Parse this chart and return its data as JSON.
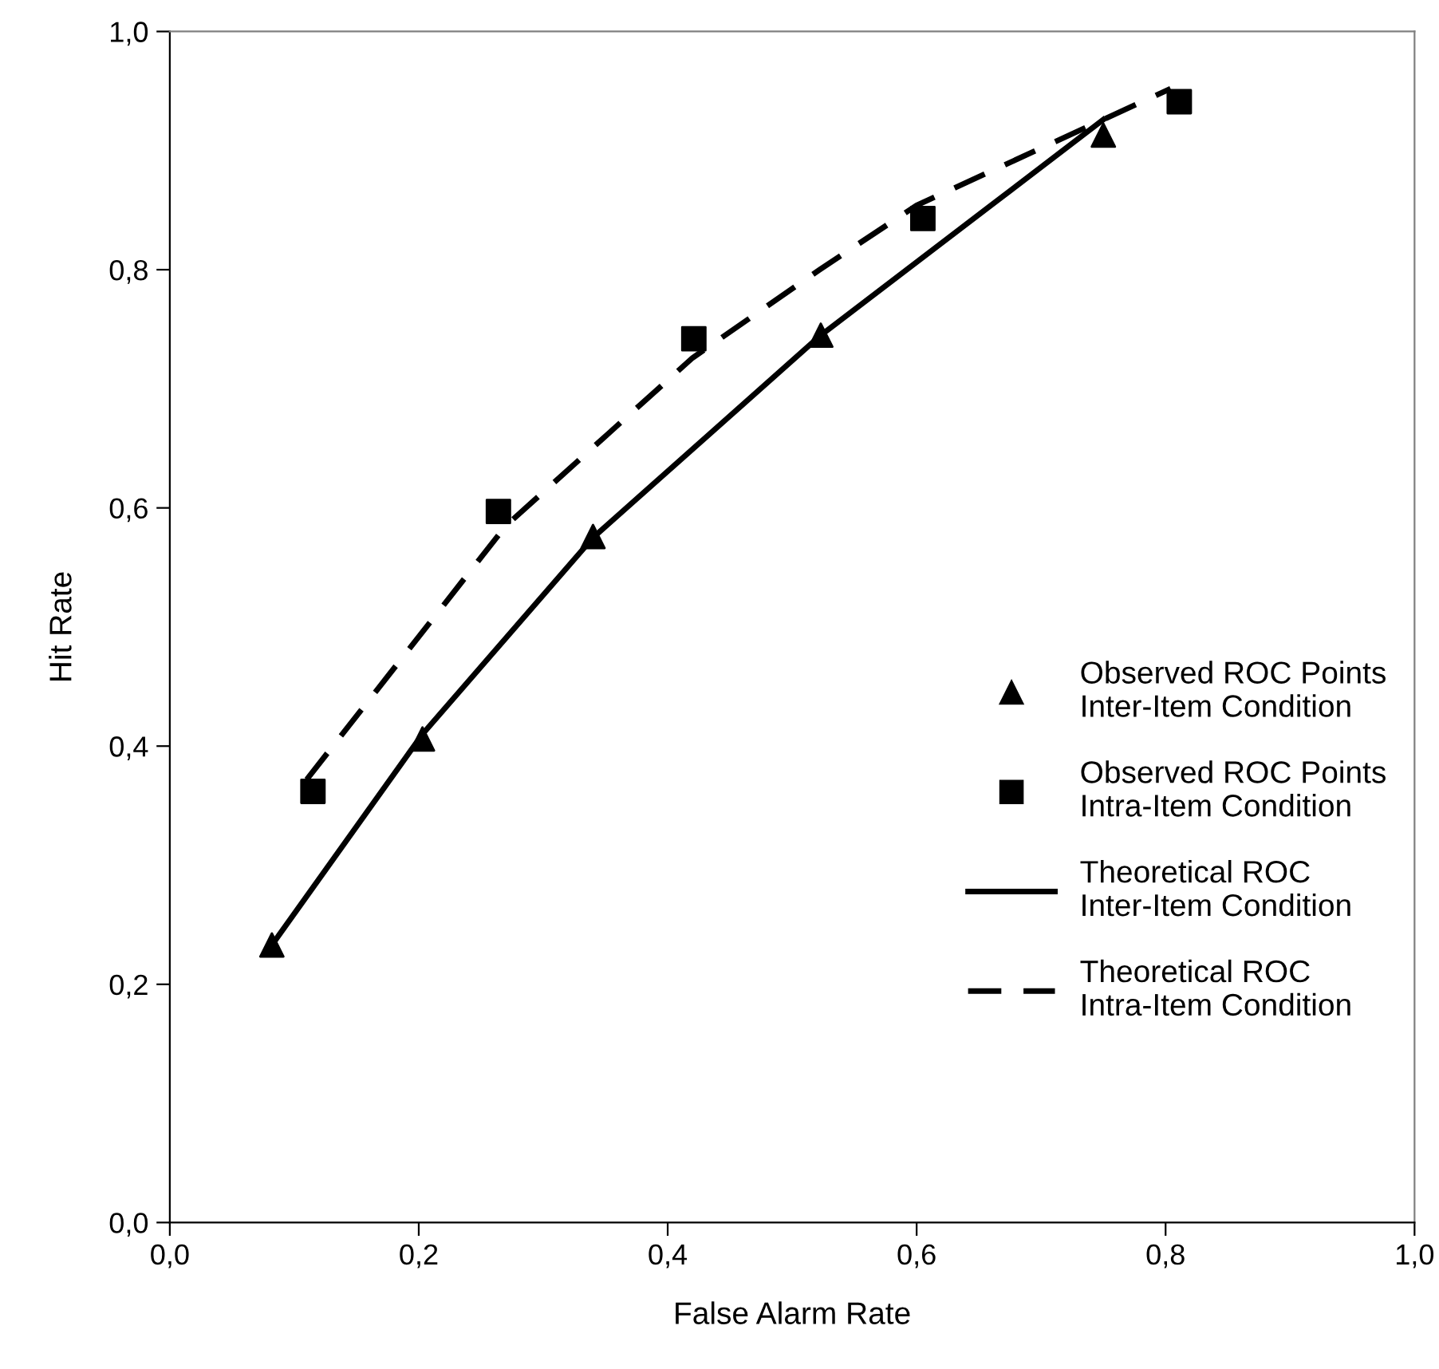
{
  "chart_data": {
    "type": "scatter",
    "xlabel": "False Alarm Rate",
    "ylabel": "Hit Rate",
    "xlim": [
      0,
      1
    ],
    "ylim": [
      0,
      1
    ],
    "xticks": [
      {
        "value": 0,
        "label": "0,0"
      },
      {
        "value": 0.2,
        "label": "0,2"
      },
      {
        "value": 0.4,
        "label": "0,4"
      },
      {
        "value": 0.6,
        "label": "0,6"
      },
      {
        "value": 0.8,
        "label": "0,8"
      },
      {
        "value": 1,
        "label": "1,0"
      }
    ],
    "yticks": [
      {
        "value": 0,
        "label": "0,0"
      },
      {
        "value": 0.2,
        "label": "0,2"
      },
      {
        "value": 0.4,
        "label": "0,4"
      },
      {
        "value": 0.6,
        "label": "0,6"
      },
      {
        "value": 0.8,
        "label": "0,8"
      },
      {
        "value": 1,
        "label": "1,0"
      }
    ],
    "grid": false,
    "legend": "right",
    "series": [
      {
        "name": "Observed ROC Points Inter-Item Condition",
        "marker": "triangle",
        "color": "#000000",
        "x": [
          0.082,
          0.203,
          0.34,
          0.523,
          0.75
        ],
        "values": [
          0.233,
          0.406,
          0.576,
          0.745,
          0.913
        ]
      },
      {
        "name": "Observed ROC Points Intra-Item Condition",
        "marker": "square",
        "color": "#000000",
        "x": [
          0.115,
          0.264,
          0.421,
          0.605,
          0.811
        ],
        "values": [
          0.362,
          0.597,
          0.742,
          0.843,
          0.941
        ]
      },
      {
        "name": "Theoretical ROC Inter-Item Condition",
        "type": "line",
        "line_style": "solid",
        "marker": "none",
        "color": "#000000",
        "x": [
          0.082,
          0.203,
          0.34,
          0.523,
          0.75
        ],
        "values": [
          0.233,
          0.41,
          0.575,
          0.745,
          0.926
        ]
      },
      {
        "name": "Theoretical ROC Intra-Item Condition",
        "type": "line",
        "line_style": "dashed",
        "marker": "none",
        "color": "#000000",
        "x": [
          0.11,
          0.27,
          0.42,
          0.522,
          0.6,
          0.804
        ],
        "values": [
          0.372,
          0.585,
          0.726,
          0.8,
          0.854,
          0.952
        ]
      }
    ]
  }
}
